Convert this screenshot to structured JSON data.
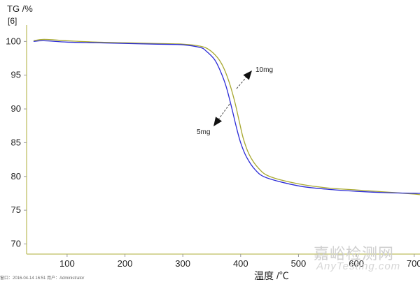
{
  "chart_data": {
    "type": "line",
    "ylabel_line1": "TG /%",
    "ylabel_line2": "[6]",
    "xlabel": "温度 /℃",
    "xlim": [
      30,
      710
    ],
    "ylim": [
      68.5,
      102
    ],
    "xticks": [
      100,
      200,
      300,
      400,
      500,
      600,
      700
    ],
    "yticks": [
      70,
      75,
      80,
      85,
      90,
      95,
      100
    ],
    "grid": false,
    "series": [
      {
        "name": "10mg",
        "color": "#a8a830",
        "x": [
          42,
          60,
          100,
          150,
          200,
          250,
          300,
          330,
          345,
          360,
          370,
          380,
          390,
          398,
          405,
          415,
          430,
          450,
          500,
          550,
          600,
          650,
          700,
          710
        ],
        "y": [
          100.1,
          100.3,
          100.1,
          99.9,
          99.8,
          99.7,
          99.6,
          99.3,
          98.8,
          97.6,
          96.2,
          94.0,
          91.0,
          88.0,
          85.5,
          83.2,
          81.3,
          80.0,
          78.9,
          78.3,
          78.0,
          77.7,
          77.4,
          77.3
        ]
      },
      {
        "name": "5mg",
        "color": "#2b2bd6",
        "x": [
          42,
          60,
          100,
          150,
          200,
          250,
          300,
          330,
          340,
          355,
          365,
          375,
          385,
          392,
          400,
          410,
          425,
          445,
          500,
          550,
          600,
          650,
          700,
          710
        ],
        "y": [
          100.0,
          100.1,
          99.9,
          99.8,
          99.7,
          99.6,
          99.5,
          99.1,
          98.6,
          97.3,
          95.6,
          93.3,
          90.0,
          87.5,
          85.0,
          82.9,
          81.0,
          79.8,
          78.6,
          78.1,
          77.8,
          77.6,
          77.5,
          77.5
        ]
      }
    ],
    "annotations": [
      {
        "text": "10mg"
      },
      {
        "text": "5mg"
      }
    ]
  },
  "watermark": {
    "cn": "嘉峪检测网",
    "en": "AnyTesting.com"
  },
  "footer": {
    "text": "窗口：2016-04-14 16:51   用户：Administrator"
  }
}
